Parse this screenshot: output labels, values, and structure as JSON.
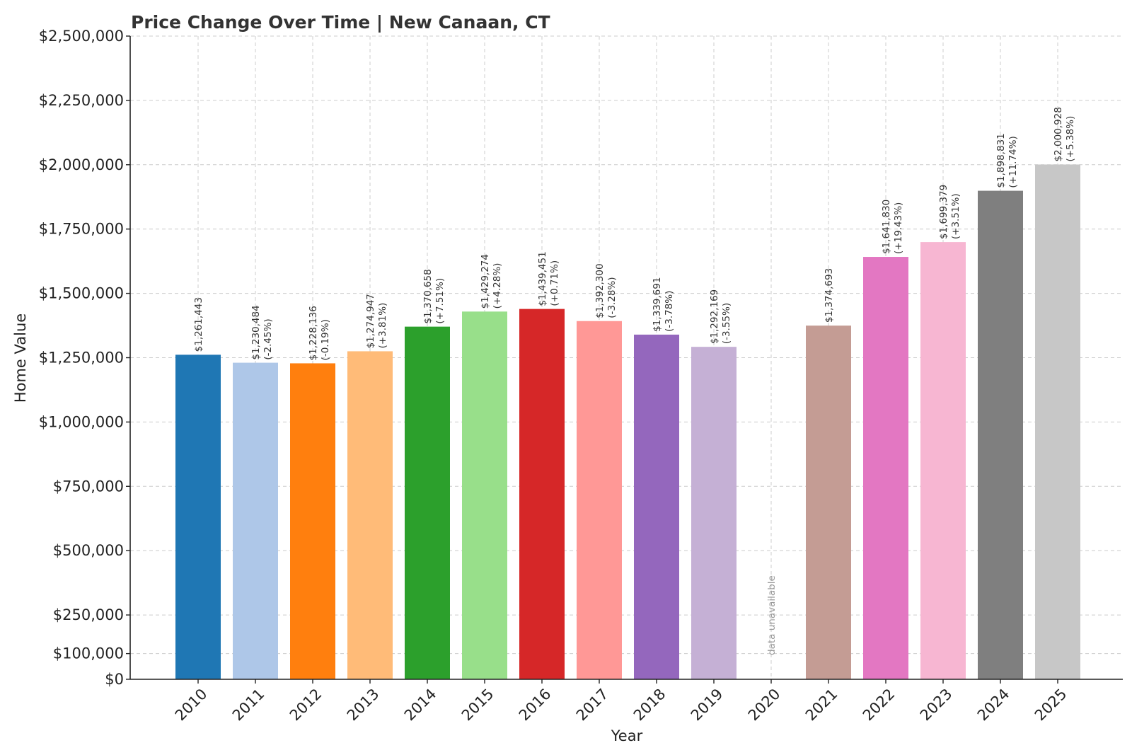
{
  "chart_data": {
    "type": "bar",
    "title": "Price Change Over Time | New Canaan, CT",
    "xlabel": "Year",
    "ylabel": "Home Value",
    "ylim": [
      0,
      2500000
    ],
    "yticks": [
      0,
      100000,
      250000,
      500000,
      750000,
      1000000,
      1250000,
      1500000,
      1750000,
      2000000,
      2250000,
      2500000
    ],
    "ytick_labels": [
      "$0",
      "$100,000",
      "$250,000",
      "$500,000",
      "$750,000",
      "$1,000,000",
      "$1,250,000",
      "$1,500,000",
      "$1,750,000",
      "$2,000,000",
      "$2,250,000",
      "$2,500,000"
    ],
    "grid": true,
    "categories": [
      "2010",
      "2011",
      "2012",
      "2013",
      "2014",
      "2015",
      "2016",
      "2017",
      "2018",
      "2019",
      "2020",
      "2021",
      "2022",
      "2023",
      "2024",
      "2025"
    ],
    "values": [
      1261443,
      1230484,
      1228136,
      1274947,
      1370658,
      1429274,
      1439451,
      1392300,
      1339691,
      1292169,
      null,
      1374693,
      1641830,
      1699379,
      1898831,
      2000928
    ],
    "value_labels": [
      "$1,261,443",
      "$1,230,484",
      "$1,228,136",
      "$1,274,947",
      "$1,370,658",
      "$1,429,274",
      "$1,439,451",
      "$1,392,300",
      "$1,339,691",
      "$1,292,169",
      "",
      "$1,374,693",
      "$1,641,830",
      "$1,699,379",
      "$1,898,831",
      "$2,000,928"
    ],
    "change_labels": [
      "",
      "(-2.45%)",
      "(-0.19%)",
      "(+3.81%)",
      "(+7.51%)",
      "(+4.28%)",
      "(+0.71%)",
      "(-3.28%)",
      "(-3.78%)",
      "(-3.55%)",
      "",
      "",
      "(+19.43%)",
      "(+3.51%)",
      "(+11.74%)",
      "(+5.38%)"
    ],
    "missing_label": "data unavailable",
    "colors": [
      "#1f77b4",
      "#aec7e8",
      "#ff7f0e",
      "#ffbb78",
      "#2ca02c",
      "#98df8a",
      "#d62728",
      "#ff9896",
      "#9467bd",
      "#c5b0d5",
      "#8c564b",
      "#c49c94",
      "#e377c2",
      "#f7b6d2",
      "#7f7f7f",
      "#c7c7c7"
    ]
  }
}
